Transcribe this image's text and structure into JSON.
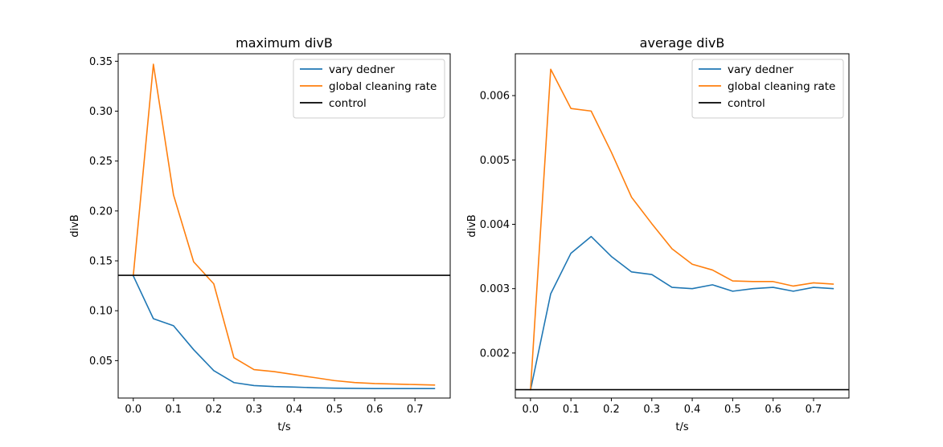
{
  "chart_data": [
    {
      "type": "line",
      "title": "maximum divB",
      "xlabel": "t/s",
      "ylabel": "divB",
      "xlim": [
        -0.0375,
        0.7875
      ],
      "ylim": [
        0.0125,
        0.3575
      ],
      "xticks": [
        0.0,
        0.1,
        0.2,
        0.3,
        0.4,
        0.5,
        0.6,
        0.7
      ],
      "xtick_labels": [
        "0.0",
        "0.1",
        "0.2",
        "0.3",
        "0.4",
        "0.5",
        "0.6",
        "0.7"
      ],
      "yticks": [
        0.05,
        0.1,
        0.15,
        0.2,
        0.25,
        0.3,
        0.35
      ],
      "ytick_labels": [
        "0.05",
        "0.10",
        "0.15",
        "0.20",
        "0.25",
        "0.30",
        "0.35"
      ],
      "legend_position": "top-right",
      "grid": false,
      "x": [
        0.0,
        0.05,
        0.1,
        0.15,
        0.2,
        0.25,
        0.3,
        0.35,
        0.4,
        0.45,
        0.5,
        0.55,
        0.6,
        0.65,
        0.7,
        0.75
      ],
      "series": [
        {
          "name": "vary dedner",
          "color": "#1f77b4",
          "values": [
            0.135,
            0.092,
            0.085,
            0.061,
            0.04,
            0.028,
            0.025,
            0.024,
            0.0235,
            0.0228,
            0.0224,
            0.0222,
            0.022,
            0.022,
            0.022,
            0.022
          ]
        },
        {
          "name": "global cleaning rate",
          "color": "#ff7f0e",
          "values": [
            0.135,
            0.347,
            0.216,
            0.149,
            0.127,
            0.053,
            0.041,
            0.039,
            0.036,
            0.033,
            0.03,
            0.028,
            0.027,
            0.0265,
            0.026,
            0.0255
          ]
        }
      ],
      "hlines": [
        {
          "name": "control",
          "color": "#000000",
          "value": 0.1355
        }
      ]
    },
    {
      "type": "line",
      "title": "average divB",
      "xlabel": "t/s",
      "ylabel": "divB",
      "xlim": [
        -0.0375,
        0.7875
      ],
      "ylim": [
        0.0013,
        0.00665
      ],
      "xticks": [
        0.0,
        0.1,
        0.2,
        0.3,
        0.4,
        0.5,
        0.6,
        0.7
      ],
      "xtick_labels": [
        "0.0",
        "0.1",
        "0.2",
        "0.3",
        "0.4",
        "0.5",
        "0.6",
        "0.7"
      ],
      "yticks": [
        0.002,
        0.003,
        0.004,
        0.005,
        0.006
      ],
      "ytick_labels": [
        "0.002",
        "0.003",
        "0.004",
        "0.005",
        "0.006"
      ],
      "legend_position": "top-right",
      "grid": false,
      "x": [
        0.0,
        0.05,
        0.1,
        0.15,
        0.2,
        0.25,
        0.3,
        0.35,
        0.4,
        0.45,
        0.5,
        0.55,
        0.6,
        0.65,
        0.7,
        0.75
      ],
      "series": [
        {
          "name": "vary dedner",
          "color": "#1f77b4",
          "values": [
            0.00142,
            0.00292,
            0.00355,
            0.00381,
            0.0035,
            0.00326,
            0.00322,
            0.00302,
            0.003,
            0.00306,
            0.00296,
            0.003,
            0.00302,
            0.00296,
            0.00302,
            0.003
          ]
        },
        {
          "name": "global cleaning rate",
          "color": "#ff7f0e",
          "values": [
            0.00142,
            0.00641,
            0.0058,
            0.00576,
            0.00512,
            0.00442,
            0.00401,
            0.00362,
            0.00338,
            0.00329,
            0.00312,
            0.00311,
            0.00311,
            0.00304,
            0.00309,
            0.00307
          ]
        }
      ],
      "hlines": [
        {
          "name": "control",
          "color": "#000000",
          "value": 0.00143
        }
      ]
    }
  ]
}
